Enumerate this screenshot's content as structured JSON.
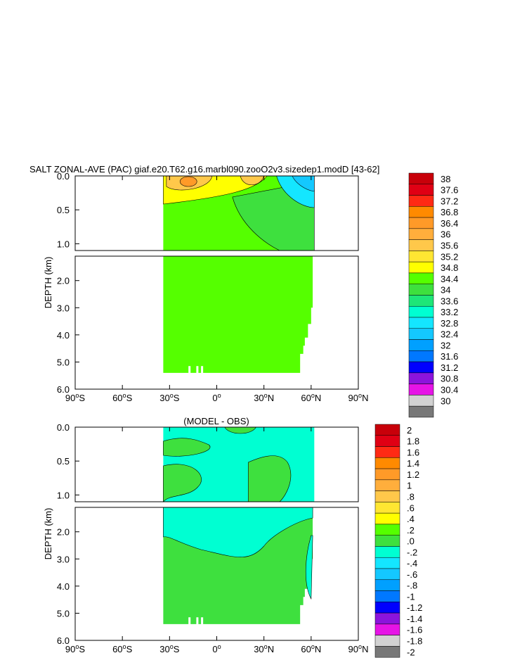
{
  "chart_data": [
    {
      "type": "heatmap",
      "title": "SALT ZONAL-AVE (PAC) giaf.e20.T62.g16.marbl090.zooO2v3.sizedep1.modD [43-62]",
      "ylabel": "DEPTH (km)",
      "xlabel": "",
      "xlim": [
        -90,
        90
      ],
      "ylim_upper": [
        0.0,
        1.1
      ],
      "ylim_lower": [
        1.1,
        6.0
      ],
      "x_ticks": [
        "90°S",
        "60°S",
        "30°S",
        "0°",
        "30°N",
        "60°N",
        "90°N"
      ],
      "y_ticks_upper": [
        "0.0",
        "0.5",
        "1.0"
      ],
      "y_ticks_lower": [
        "2.0",
        "3.0",
        "4.0",
        "5.0",
        "6.0"
      ],
      "colorbar_labels": [
        "38",
        "37.6",
        "37.2",
        "36.8",
        "36.4",
        "36",
        "35.6",
        "35.2",
        "34.8",
        "34.4",
        "34",
        "33.6",
        "33.2",
        "32.8",
        "32.4",
        "32",
        "31.6",
        "31.2",
        "30.8",
        "30.4",
        "30"
      ],
      "colorbar_colors": [
        "#c8000a",
        "#e00014",
        "#ff2a14",
        "#ff8a00",
        "#ff9a28",
        "#ffae3c",
        "#ffc84a",
        "#ffe632",
        "#ffff00",
        "#55ff00",
        "#3ee03e",
        "#1ee678",
        "#00ffd2",
        "#14e6ff",
        "#14c8ff",
        "#00a0ff",
        "#0078ff",
        "#0000ff",
        "#8c14dc",
        "#e614e6",
        "#d2d2d2",
        "#787878"
      ]
    },
    {
      "type": "heatmap",
      "title": "(MODEL - OBS)",
      "ylabel": "DEPTH (km)",
      "xlabel": "",
      "xlim": [
        -90,
        90
      ],
      "ylim_upper": [
        0.0,
        1.1
      ],
      "ylim_lower": [
        1.1,
        6.0
      ],
      "x_ticks": [
        "90°S",
        "60°S",
        "30°S",
        "0°",
        "30°N",
        "60°N",
        "90°N"
      ],
      "y_ticks_upper": [
        "0.0",
        "0.5",
        "1.0"
      ],
      "y_ticks_lower": [
        "2.0",
        "3.0",
        "4.0",
        "5.0",
        "6.0"
      ],
      "colorbar_labels": [
        "2",
        "1.8",
        "1.6",
        "1.4",
        "1.2",
        "1",
        ".8",
        ".6",
        ".4",
        ".2",
        ".0",
        "-.2",
        "-.4",
        "-.6",
        "-.8",
        "-1",
        "-1.2",
        "-1.4",
        "-1.6",
        "-1.8",
        "-2"
      ],
      "colorbar_colors": [
        "#c8000a",
        "#e00014",
        "#ff2a14",
        "#ff8a00",
        "#ff9a28",
        "#ffae3c",
        "#ffc84a",
        "#ffe632",
        "#ffff00",
        "#55ff00",
        "#3ee03e",
        "#00ffd2",
        "#14e6ff",
        "#14c8ff",
        "#00a0ff",
        "#0078ff",
        "#0000ff",
        "#8c14dc",
        "#e614e6",
        "#d2d2d2",
        "#787878"
      ]
    }
  ]
}
